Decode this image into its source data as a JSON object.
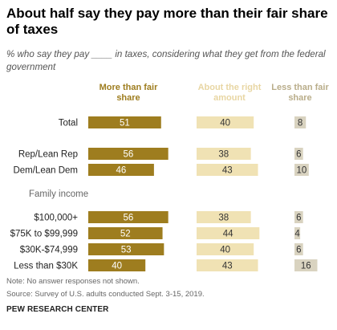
{
  "chart_data": {
    "type": "bar",
    "title": "About half say they pay more than their fair share of taxes",
    "subtitle": "% who say they pay ____ in taxes, considering what they get from the federal government",
    "categories": [
      "Total",
      "Rep/Lean Rep",
      "Dem/Lean Dem",
      "$100,000+",
      "$75K to $99,999",
      "$30K-$74,999",
      "Less than $30K"
    ],
    "group_label": "Family income",
    "series": [
      {
        "name": "More than fair share",
        "color": "#9e7d1f",
        "label_color": "#ffffff",
        "values": [
          51,
          56,
          46,
          56,
          52,
          53,
          40
        ]
      },
      {
        "name": "About the right amount",
        "color": "#f0e2b4",
        "label_color": "#333333",
        "values": [
          40,
          38,
          43,
          38,
          44,
          40,
          43
        ]
      },
      {
        "name": "Less than fair share",
        "color": "#d9d3c0",
        "label_color": "#333333",
        "values": [
          8,
          6,
          10,
          6,
          4,
          6,
          16
        ]
      }
    ],
    "header_colors": [
      "#9e7d1f",
      "#e8d6a3",
      "#b9ad8a"
    ],
    "note": "Note: No answer responses not shown.",
    "source": "Source: Survey of U.S. adults conducted Sept. 3-15, 2019."
  },
  "brand": "PEW RESEARCH CENTER"
}
